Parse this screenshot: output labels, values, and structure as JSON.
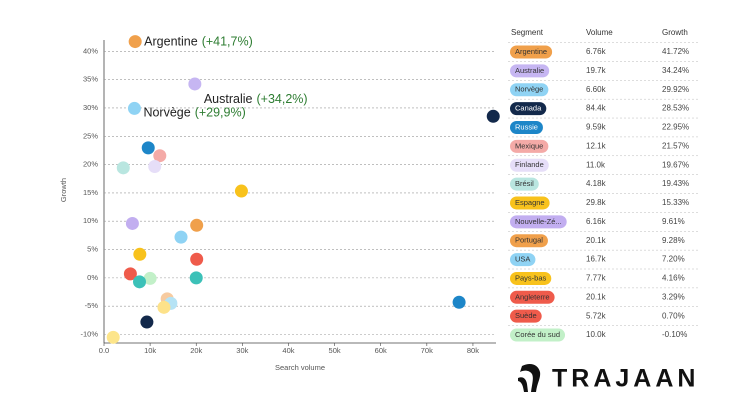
{
  "chart_data": {
    "type": "scatter",
    "xlabel": "Search volume",
    "ylabel": "Growth",
    "xlim": [
      0,
      85000
    ],
    "ylim": [
      -11.5,
      42
    ],
    "xticks": [
      {
        "value": 0,
        "label": "0.0"
      },
      {
        "value": 10000,
        "label": "10k"
      },
      {
        "value": 20000,
        "label": "20k"
      },
      {
        "value": 30000,
        "label": "30k"
      },
      {
        "value": 40000,
        "label": "40k"
      },
      {
        "value": 50000,
        "label": "50k"
      },
      {
        "value": 60000,
        "label": "60k"
      },
      {
        "value": 70000,
        "label": "70k"
      },
      {
        "value": 80000,
        "label": "80k"
      }
    ],
    "yticks": [
      {
        "value": -10,
        "label": "-10%"
      },
      {
        "value": -5,
        "label": "-5%"
      },
      {
        "value": 0,
        "label": "0%"
      },
      {
        "value": 5,
        "label": "5%"
      },
      {
        "value": 10,
        "label": "10%"
      },
      {
        "value": 15,
        "label": "15%"
      },
      {
        "value": 20,
        "label": "20%"
      },
      {
        "value": 25,
        "label": "25%"
      },
      {
        "value": 30,
        "label": "30%"
      },
      {
        "value": 35,
        "label": "35%"
      },
      {
        "value": 40,
        "label": "40%"
      }
    ],
    "grid": true,
    "x": [
      6760,
      19700,
      6600,
      84400,
      9590,
      12100,
      11000,
      4180,
      29800,
      6160,
      20100,
      16700,
      7770,
      20100,
      5720,
      10000,
      20000,
      7700,
      13700,
      14500,
      13000,
      77000,
      9300,
      2000
    ],
    "values": [
      41.72,
      34.24,
      29.92,
      28.53,
      22.95,
      21.57,
      19.67,
      19.43,
      15.33,
      9.61,
      9.28,
      7.2,
      4.16,
      3.29,
      0.7,
      -0.1,
      0,
      -0.7,
      -3.7,
      -4.5,
      -5.2,
      -4.3,
      -7.8,
      -10.5
    ],
    "colors": [
      "#f0a04b",
      "#c6b6f2",
      "#8fd3f4",
      "#13294b",
      "#1d86c8",
      "#f4aaa7",
      "#e6def8",
      "#b9e6e0",
      "#f8c21c",
      "#c2aef0",
      "#f0a04b",
      "#8fd3f4",
      "#f8c21c",
      "#ef5b4b",
      "#ef5b4b",
      "#c2f0c8",
      "#3cc1b8",
      "#3cc1b8",
      "#f7cba0",
      "#b5e3f5",
      "#fde28a",
      "#1d86c8",
      "#13294b",
      "#fde58a"
    ],
    "annotations": [
      {
        "label": "Argentine",
        "change": "(+41,7%)"
      },
      {
        "label": "Australie",
        "change": "(+34,2%)"
      },
      {
        "label": "Norvège",
        "change": "(+29,9%)"
      }
    ]
  },
  "table": {
    "headers": [
      "Segment",
      "Volume",
      "Growth"
    ],
    "rows": [
      [
        "Argentine",
        "6.76k",
        "41.72%"
      ],
      [
        "Australie",
        "19.7k",
        "34.24%"
      ],
      [
        "Norvège",
        "6.60k",
        "29.92%"
      ],
      [
        "Canada",
        "84.4k",
        "28.53%"
      ],
      [
        "Russie",
        "9.59k",
        "22.95%"
      ],
      [
        "Mexique",
        "12.1k",
        "21.57%"
      ],
      [
        "Finlande",
        "11.0k",
        "19.67%"
      ],
      [
        "Brésil",
        "4.18k",
        "19.43%"
      ],
      [
        "Espagne",
        "29.8k",
        "15.33%"
      ],
      [
        "Nouvelle-Zé...",
        "6.16k",
        "9.61%"
      ],
      [
        "Portugal",
        "20.1k",
        "9.28%"
      ],
      [
        "USA",
        "16.7k",
        "7.20%"
      ],
      [
        "Pays-bas",
        "7.77k",
        "4.16%"
      ],
      [
        "Angleterre",
        "20.1k",
        "3.29%"
      ],
      [
        "Suède",
        "5.72k",
        "0.70%"
      ],
      [
        "Corée du sud",
        "10.0k",
        "-0.10%"
      ]
    ],
    "row_colors": [
      "#f0a04b",
      "#c6b6f2",
      "#8fd3f4",
      "#13294b",
      "#1d86c8",
      "#f4aaa7",
      "#e6def8",
      "#b9e6e0",
      "#f8c21c",
      "#c2aef0",
      "#f0a04b",
      "#8fd3f4",
      "#f8c21c",
      "#ef5b4b",
      "#ef5b4b",
      "#c2f0c8"
    ]
  },
  "logo": "TRAJAAN"
}
